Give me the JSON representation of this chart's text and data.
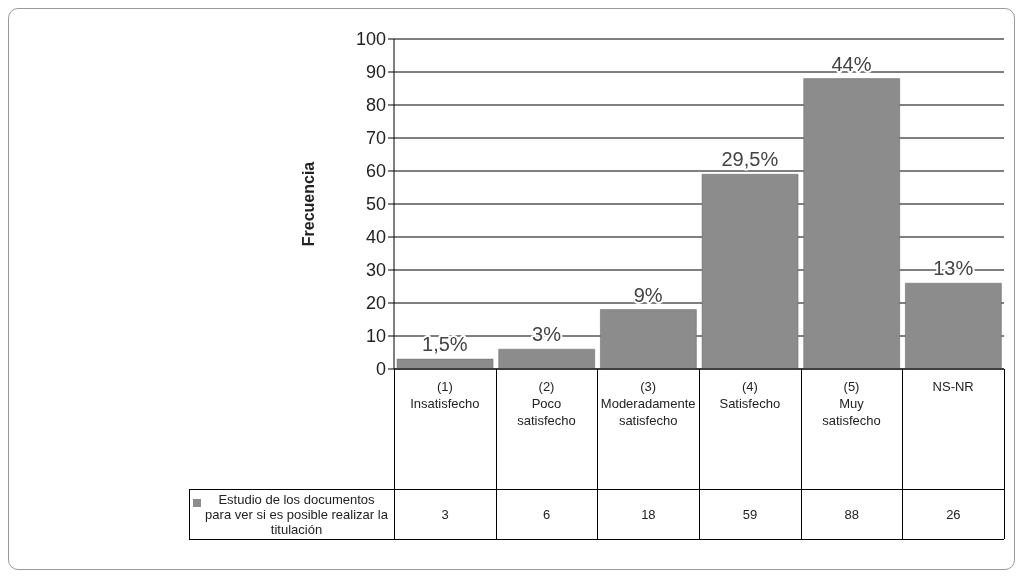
{
  "chart_data": {
    "type": "bar",
    "ylabel": "Frecuencia",
    "categories": [
      "(1) Insatisfecho",
      "(2) Poco satisfecho",
      "(3) Moderadamente satisfecho",
      "(4) Satisfecho",
      "(5) Muy satisfecho",
      "NS-NR"
    ],
    "series": [
      {
        "name": "Estudio de los documentos para ver si es posible realizar la titulación",
        "color": "#8c8c8c",
        "values": [
          3,
          6,
          18,
          59,
          88,
          26
        ]
      }
    ],
    "annotations": [
      {
        "text": "1,5%",
        "x": "(1) Insatisfecho",
        "y": 3
      },
      {
        "text": "3%",
        "x": "(2) Poco satisfecho",
        "y": 6
      },
      {
        "text": "9%",
        "x": "(3) Moderadamente satisfecho",
        "y": 18
      },
      {
        "text": "29,5%",
        "x": "(4) Satisfecho",
        "y": 59
      },
      {
        "text": "44%",
        "x": "(5) Muy satisfecho",
        "y": 88
      },
      {
        "text": "13%",
        "x": "NS-NR",
        "y": 26
      }
    ],
    "ylim": [
      0,
      100
    ],
    "yticks": [
      0,
      10,
      20,
      30,
      40,
      50,
      60,
      70,
      80,
      90,
      100
    ],
    "grid": "y",
    "data_labels": true
  }
}
